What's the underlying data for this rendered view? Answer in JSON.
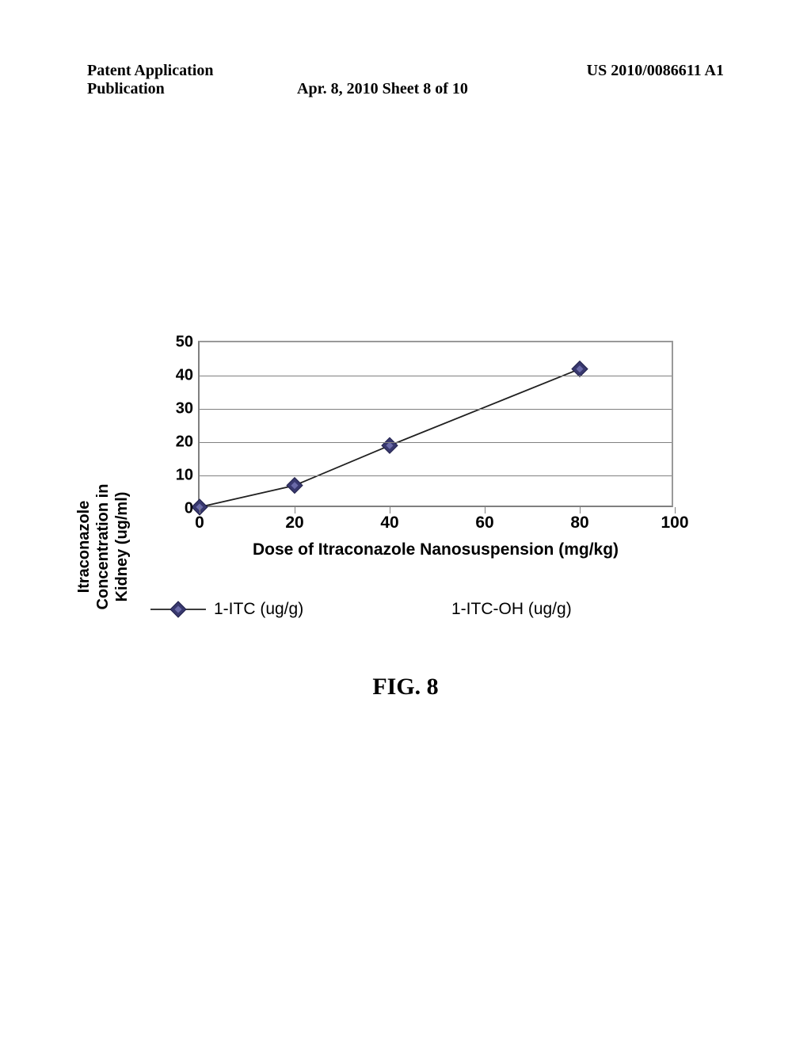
{
  "header": {
    "left": "Patent Application Publication",
    "mid": "Apr. 8, 2010  Sheet 8 of 10",
    "right": "US 2010/0086611 A1"
  },
  "chart": {
    "type": "scatter-line",
    "ylabel": "Itraconazole\nConcentration in\nKidney (ug/ml)",
    "xlabel": "Dose of Itraconazole Nanosuspension (mg/kg)",
    "xlim": [
      0,
      100
    ],
    "ylim": [
      0,
      50
    ],
    "xtick_step": 20,
    "ytick_step": 10,
    "xticks": [
      0,
      20,
      40,
      60,
      80,
      100
    ],
    "yticks": [
      0,
      10,
      20,
      30,
      40,
      50
    ],
    "grid_color": "#808080",
    "axis_color": "#808080",
    "background_color": "#ffffff",
    "marker": {
      "shape": "diamond",
      "size": 10,
      "fill": "#38386e",
      "inner_fill": "#6a6aa8",
      "stroke": "#20204a"
    },
    "line_color": "#202020",
    "line_width": 1.8,
    "series_itc": {
      "label": "1-ITC (ug/g)",
      "x": [
        0,
        20,
        40,
        80
      ],
      "y": [
        0.5,
        7,
        19,
        42
      ]
    },
    "series_itc_oh": {
      "label": "1-ITC-OH (ug/g)"
    }
  },
  "legend": {
    "left": "1-ITC (ug/g)",
    "right": "1-ITC-OH (ug/g)"
  },
  "caption": "FIG. 8"
}
